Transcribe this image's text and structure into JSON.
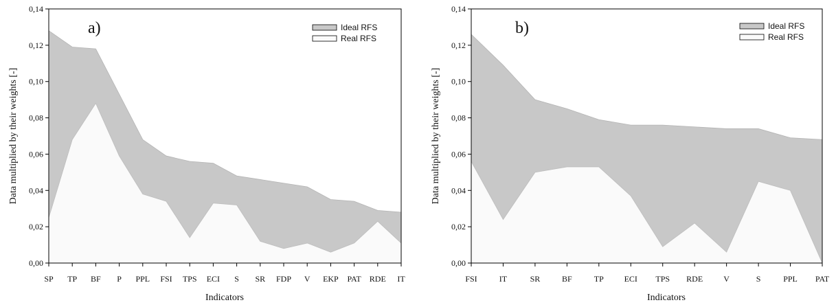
{
  "colors": {
    "ideal": "#c8c8c8",
    "real": "#fafafa",
    "axis": "#000000"
  },
  "chart_data": [
    {
      "type": "area",
      "panel_label": "a)",
      "xlabel": "Indicators",
      "ylabel": "Data multiplied by their weights [-]",
      "ylim": [
        0,
        0.14
      ],
      "yticks": [
        "0,00",
        "0,02",
        "0,04",
        "0,06",
        "0,08",
        "0,10",
        "0,12",
        "0,14"
      ],
      "categories": [
        "SP",
        "TP",
        "BF",
        "P",
        "PPL",
        "FSI",
        "TPS",
        "ECI",
        "S",
        "SR",
        "FDP",
        "V",
        "EKP",
        "PAT",
        "RDE",
        "IT"
      ],
      "series": [
        {
          "name": "Ideal RFS",
          "values": [
            0.128,
            0.119,
            0.118,
            0.093,
            0.068,
            0.059,
            0.056,
            0.055,
            0.048,
            0.046,
            0.044,
            0.042,
            0.035,
            0.034,
            0.029,
            0.028
          ]
        },
        {
          "name": "Real RFS",
          "values": [
            0.025,
            0.068,
            0.088,
            0.059,
            0.038,
            0.034,
            0.014,
            0.033,
            0.032,
            0.012,
            0.008,
            0.011,
            0.006,
            0.011,
            0.023,
            0.011
          ]
        }
      ],
      "legend": "top-right"
    },
    {
      "type": "area",
      "panel_label": "b)",
      "xlabel": "Indicators",
      "ylabel": "Data multiplied by their weights [-]",
      "ylim": [
        0,
        0.14
      ],
      "yticks": [
        "0,00",
        "0,02",
        "0,04",
        "0,06",
        "0,08",
        "0,10",
        "0,12",
        "0,14"
      ],
      "categories": [
        "FSI",
        "IT",
        "SR",
        "BF",
        "TP",
        "ECI",
        "TPS",
        "RDE",
        "V",
        "S",
        "PPL",
        "PAT"
      ],
      "series": [
        {
          "name": "Ideal RFS",
          "values": [
            0.126,
            0.109,
            0.09,
            0.085,
            0.079,
            0.076,
            0.076,
            0.075,
            0.074,
            0.074,
            0.069,
            0.068
          ]
        },
        {
          "name": "Real RFS",
          "values": [
            0.056,
            0.024,
            0.05,
            0.053,
            0.053,
            0.037,
            0.009,
            0.022,
            0.006,
            0.045,
            0.04,
            0.0
          ]
        }
      ],
      "legend": "top-right"
    }
  ]
}
